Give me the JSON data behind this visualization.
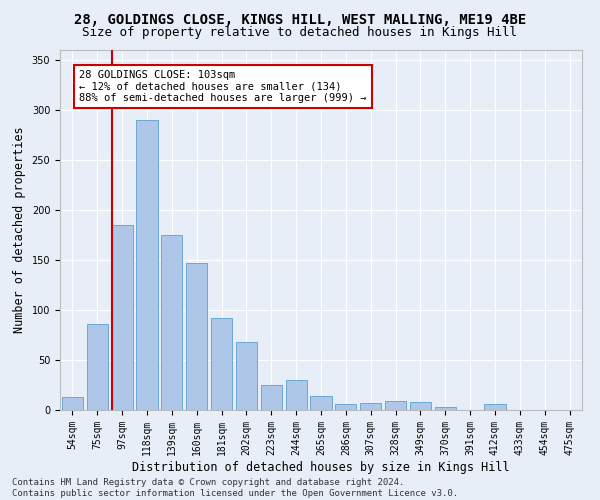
{
  "title1": "28, GOLDINGS CLOSE, KINGS HILL, WEST MALLING, ME19 4BE",
  "title2": "Size of property relative to detached houses in Kings Hill",
  "xlabel": "Distribution of detached houses by size in Kings Hill",
  "ylabel": "Number of detached properties",
  "bar_labels": [
    "54sqm",
    "75sqm",
    "97sqm",
    "118sqm",
    "139sqm",
    "160sqm",
    "181sqm",
    "202sqm",
    "223sqm",
    "244sqm",
    "265sqm",
    "286sqm",
    "307sqm",
    "328sqm",
    "349sqm",
    "370sqm",
    "391sqm",
    "412sqm",
    "433sqm",
    "454sqm",
    "475sqm"
  ],
  "bar_values": [
    13,
    86,
    185,
    290,
    175,
    147,
    92,
    68,
    25,
    30,
    14,
    6,
    7,
    9,
    8,
    3,
    0,
    6,
    0,
    0,
    0
  ],
  "bar_color": "#aec6e8",
  "bar_edge_color": "#5a9fd4",
  "vline_color": "#cc0000",
  "annotation_text": "28 GOLDINGS CLOSE: 103sqm\n← 12% of detached houses are smaller (134)\n88% of semi-detached houses are larger (999) →",
  "annotation_box_color": "#ffffff",
  "annotation_box_edge_color": "#cc0000",
  "ylim": [
    0,
    360
  ],
  "yticks": [
    0,
    50,
    100,
    150,
    200,
    250,
    300,
    350
  ],
  "background_color": "#e8eef7",
  "grid_color": "#ffffff",
  "footer_text": "Contains HM Land Registry data © Crown copyright and database right 2024.\nContains public sector information licensed under the Open Government Licence v3.0.",
  "title1_fontsize": 10,
  "title2_fontsize": 9,
  "xlabel_fontsize": 8.5,
  "ylabel_fontsize": 8.5,
  "annotation_fontsize": 7.5,
  "footer_fontsize": 6.5,
  "tick_fontsize": 7
}
